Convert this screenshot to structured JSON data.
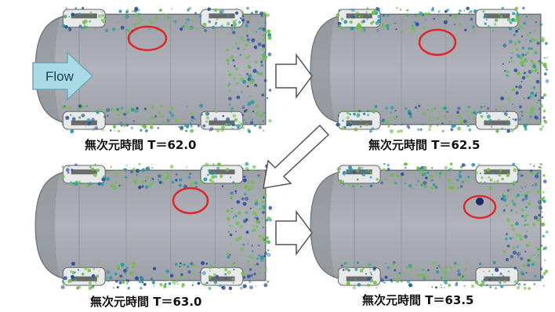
{
  "flow_label": "Flow",
  "panels": [
    {
      "caption": "無次元時間  T＝62.0",
      "highlight_tone": "green"
    },
    {
      "caption": "無次元時間  T＝62.5",
      "highlight_tone": "green"
    },
    {
      "caption": "無次元時間  T＝63.0",
      "highlight_tone": "green"
    },
    {
      "caption": "無次元時間  T＝63.5",
      "highlight_tone": "blue"
    }
  ],
  "colors": {
    "car_body": "#a4a8ae",
    "car_outline": "#6e737a",
    "highlight_ring": "#e0252b",
    "flow_arrow_fill": "#a8dbe6",
    "flow_arrow_stroke": "#6fa7b4",
    "sequence_arrow_stroke": "#555555",
    "vortex_green": "#6fc04a",
    "vortex_blue": "#2a4fa0",
    "vortex_teal": "#2a9aa8"
  }
}
